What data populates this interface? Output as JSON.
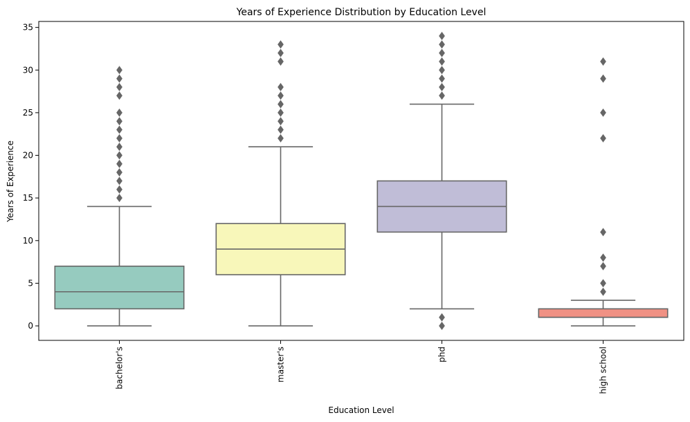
{
  "chart_data": {
    "type": "box",
    "title": "Years of Experience Distribution by Education Level",
    "xlabel": "Education Level",
    "ylabel": "Years of Experience",
    "ylim": [
      -1.7,
      35.7
    ],
    "yticks": [
      0,
      5,
      10,
      15,
      20,
      25,
      30,
      35
    ],
    "grid": false,
    "categories": [
      "bachelor's",
      "master's",
      "phd",
      "high school"
    ],
    "colors": [
      "#96cbbf",
      "#f8f7ba",
      "#c0bdd7",
      "#f09184"
    ],
    "box_edge_color": "#666666",
    "boxes": [
      {
        "category": "bachelor's",
        "whisker_low": 0,
        "q1": 2,
        "median": 4,
        "q3": 7,
        "whisker_high": 14,
        "outliers": [
          15,
          16,
          17,
          18,
          19,
          20,
          21,
          22,
          23,
          24,
          25,
          27,
          28,
          29,
          30
        ]
      },
      {
        "category": "master's",
        "whisker_low": 0,
        "q1": 6,
        "median": 9,
        "q3": 12,
        "whisker_high": 21,
        "outliers": [
          22,
          23,
          24,
          25,
          26,
          27,
          28,
          31,
          32,
          33
        ]
      },
      {
        "category": "phd",
        "whisker_low": 2,
        "q1": 11,
        "median": 14,
        "q3": 17,
        "whisker_high": 26,
        "outliers": [
          0,
          1,
          27,
          28,
          29,
          30,
          31,
          32,
          33,
          34
        ]
      },
      {
        "category": "high school",
        "whisker_low": 0,
        "q1": 1,
        "median": 1,
        "q3": 2,
        "whisker_high": 3,
        "outliers": [
          4,
          5,
          7,
          8,
          11,
          22,
          25,
          29,
          31
        ]
      }
    ]
  }
}
